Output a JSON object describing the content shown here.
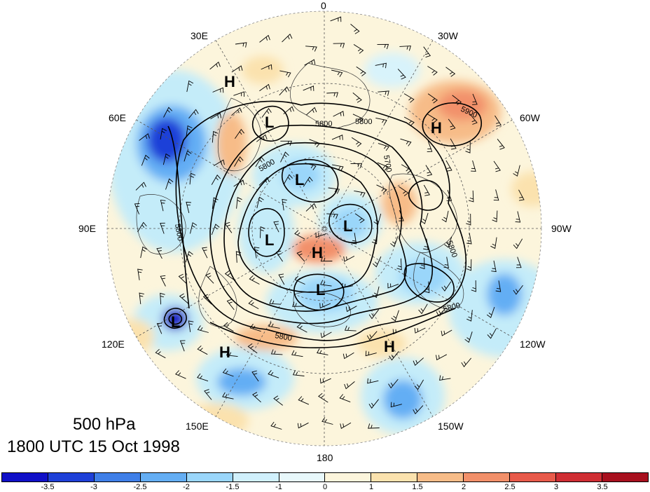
{
  "title": {
    "level": "500 hPa",
    "time": "1800 UTC 15 Oct 1998"
  },
  "longitude_labels": [
    {
      "id": "lon-0",
      "text": "0"
    },
    {
      "id": "lon-30w",
      "text": "30W"
    },
    {
      "id": "lon-60w",
      "text": "60W"
    },
    {
      "id": "lon-90w",
      "text": "90W"
    },
    {
      "id": "lon-120w",
      "text": "120W"
    },
    {
      "id": "lon-150w",
      "text": "150W"
    },
    {
      "id": "lon-180",
      "text": "180"
    },
    {
      "id": "lon-150e",
      "text": "150E"
    },
    {
      "id": "lon-120e",
      "text": "120E"
    },
    {
      "id": "lon-90e",
      "text": "90E"
    },
    {
      "id": "lon-60e",
      "text": "60E"
    },
    {
      "id": "lon-30e",
      "text": "30E"
    }
  ],
  "pressure_centers": [
    {
      "id": "h1",
      "text": "H"
    },
    {
      "id": "h2",
      "text": "H"
    },
    {
      "id": "h3",
      "text": "H"
    },
    {
      "id": "h4",
      "text": "H"
    },
    {
      "id": "h5",
      "text": "H"
    },
    {
      "id": "l1",
      "text": "L"
    },
    {
      "id": "l2",
      "text": "L"
    },
    {
      "id": "l3",
      "text": "L"
    },
    {
      "id": "l4",
      "text": "L"
    },
    {
      "id": "l5",
      "text": "L"
    },
    {
      "id": "l6",
      "text": "L"
    }
  ],
  "contour_labels": [
    {
      "id": "c1",
      "text": "5800"
    },
    {
      "id": "c2",
      "text": "5800"
    },
    {
      "id": "c3",
      "text": "5900"
    },
    {
      "id": "c4",
      "text": "5800"
    },
    {
      "id": "c5",
      "text": "5700"
    },
    {
      "id": "c6",
      "text": "5800"
    },
    {
      "id": "c7",
      "text": "5800"
    },
    {
      "id": "c8",
      "text": "5800"
    },
    {
      "id": "c9",
      "text": "5800"
    }
  ],
  "colorbar": {
    "colors": [
      "#1010c8",
      "#1e40d8",
      "#3f7fe8",
      "#64aef4",
      "#9ad6fa",
      "#d0f0fc",
      "#e8f8fb",
      "#fcf5dc",
      "#fbe2ae",
      "#f7bc88",
      "#f2906a",
      "#e85a4a",
      "#cf2d33",
      "#a8101e"
    ],
    "ticks": [
      "-3.5",
      "-3",
      "-2.5",
      "-2",
      "-1.5",
      "-1",
      "0",
      "1",
      "1.5",
      "2",
      "2.5",
      "3",
      "3.5"
    ]
  },
  "colors": {
    "background_fill": "#fcf5dc",
    "contour": "#000000"
  }
}
